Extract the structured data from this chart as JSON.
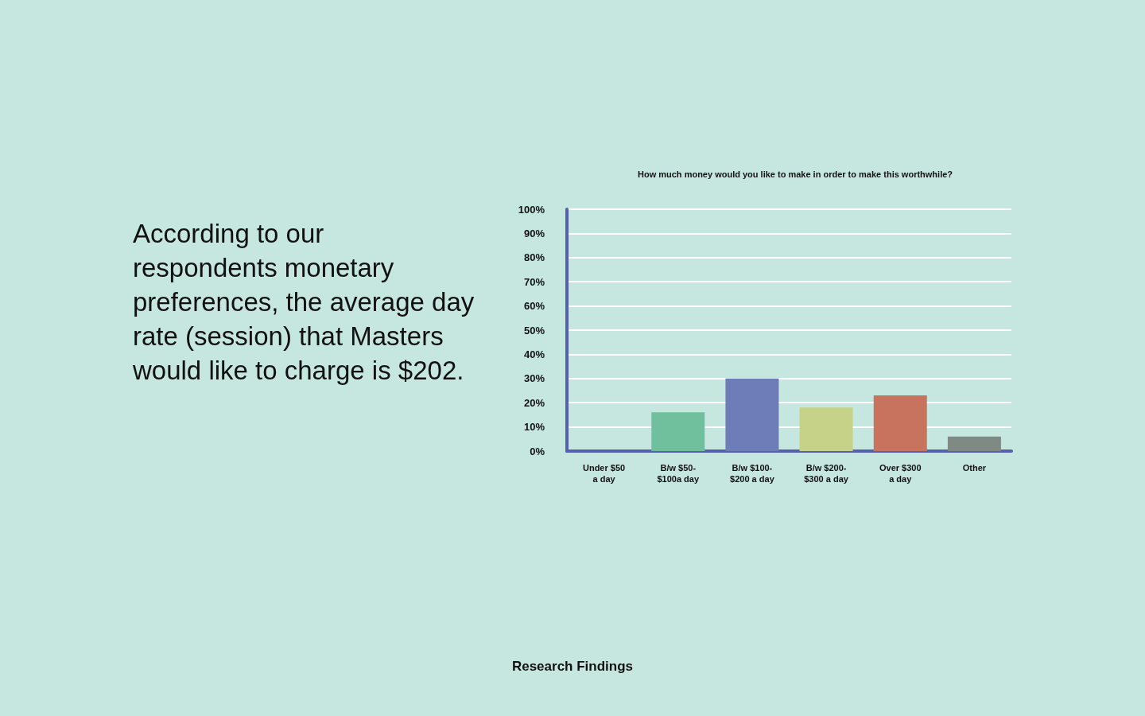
{
  "chart_data": {
    "type": "bar",
    "title": "How much money would you like to make in order to make this worthwhile?",
    "categories": [
      "Under $50\na day",
      "B/w $50-\n$100a day",
      "B/w $100-\n$200 a day",
      "B/w $200-\n$300 a day",
      "Over $300\na day",
      "Other"
    ],
    "values": [
      0,
      16,
      30,
      18,
      23,
      6
    ],
    "colors": [
      "#70c09e",
      "#70c09e",
      "#6e7db8",
      "#c6d287",
      "#c8735e",
      "#7f8a84"
    ],
    "ylim": [
      0,
      100
    ],
    "yticks": [
      {
        "value": 0,
        "label": "0%"
      },
      {
        "value": 10,
        "label": "10%"
      },
      {
        "value": 20,
        "label": "20%"
      },
      {
        "value": 30,
        "label": "30%"
      },
      {
        "value": 40,
        "label": "40%"
      },
      {
        "value": 50,
        "label": "50%"
      },
      {
        "value": 60,
        "label": "60%"
      },
      {
        "value": 70,
        "label": "70%"
      },
      {
        "value": 80,
        "label": "80%"
      },
      {
        "value": 90,
        "label": "90%"
      },
      {
        "value": 100,
        "label": "100%"
      }
    ],
    "grid": "y",
    "annotations": [
      "According to our respondents monetary preferences, the average day rate (session) that Masters would like to charge is $202.",
      "Research Findings"
    ]
  }
}
